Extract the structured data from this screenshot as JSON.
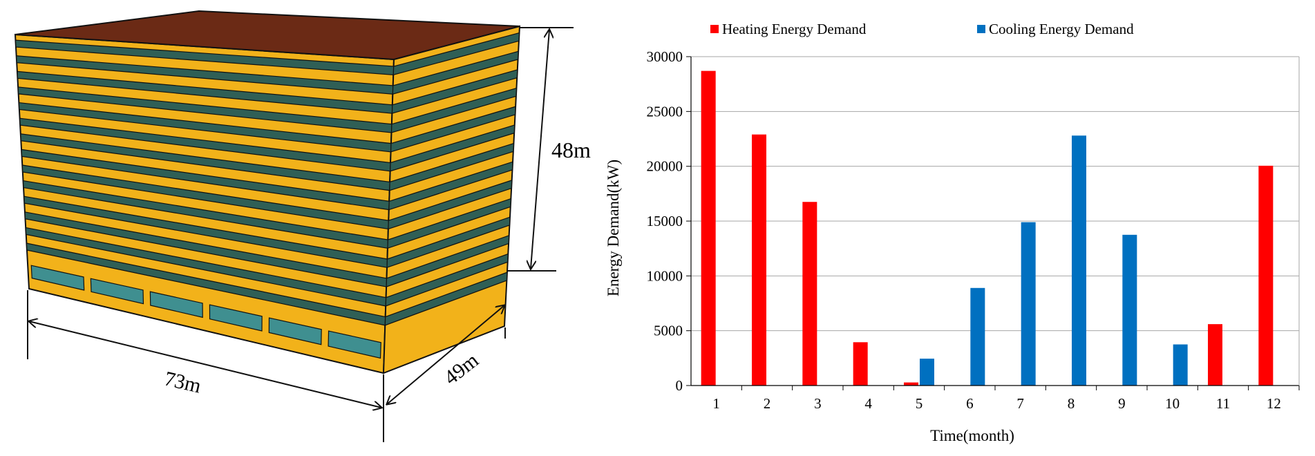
{
  "building": {
    "dimensions": {
      "length": "73m",
      "width": "49m",
      "height": "48m"
    },
    "colors": {
      "roof": "#6b2a15",
      "slab": "#f2b21a",
      "glass": "#2f5f56",
      "glass_light": "#3f8f90",
      "outline": "#111111"
    }
  },
  "chart_data": {
    "type": "bar",
    "categories": [
      "1",
      "2",
      "3",
      "4",
      "5",
      "6",
      "7",
      "8",
      "9",
      "10",
      "11",
      "12"
    ],
    "series": [
      {
        "name": "Heating Energy Demand",
        "color": "#ff0000",
        "values": [
          28700,
          22900,
          16750,
          3950,
          280,
          0,
          0,
          0,
          0,
          0,
          5600,
          20050
        ]
      },
      {
        "name": "Cooling Energy Demand",
        "color": "#0070c0",
        "values": [
          0,
          0,
          0,
          0,
          2450,
          8900,
          14900,
          22800,
          13750,
          3750,
          0,
          0
        ]
      }
    ],
    "xlabel": "Time(month)",
    "ylabel": "Energy Demand(kW)",
    "ylim": [
      0,
      30000
    ],
    "yticks": [
      "0",
      "5000",
      "10000",
      "15000",
      "20000",
      "25000",
      "30000"
    ],
    "grid": true,
    "legend_position": "top"
  }
}
